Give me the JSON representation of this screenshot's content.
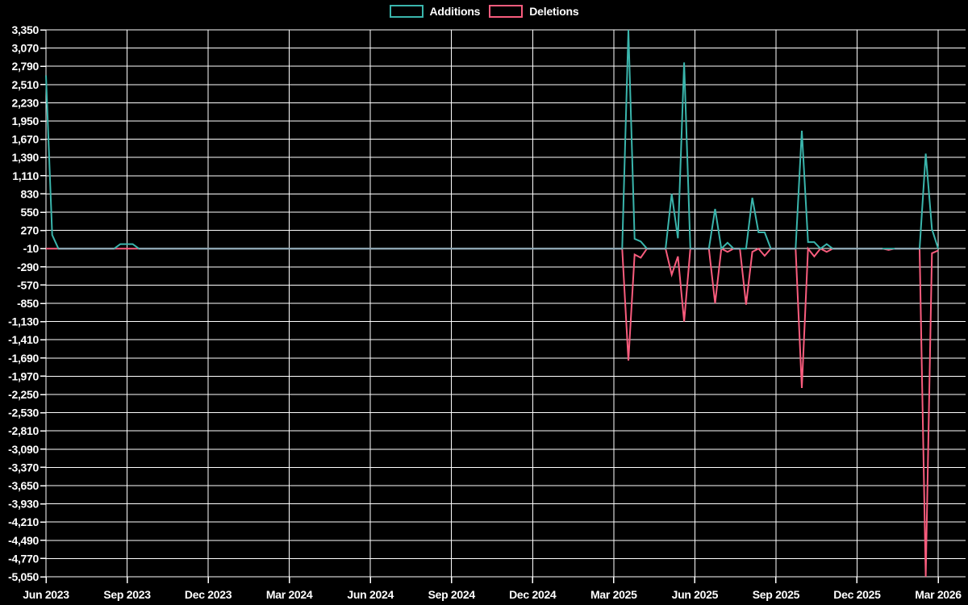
{
  "chart_data": {
    "type": "line",
    "title": "",
    "legend_position": "top-center",
    "grid": true,
    "background_color": "#000000",
    "grid_color": "#ffffff",
    "text_color": "#ffffff",
    "baseline_overlap_color": "#92a9b8",
    "x_axis": {
      "tick_labels": [
        "Jun 2023",
        "Sep 2023",
        "Dec 2023",
        "Mar 2024",
        "Jun 2024",
        "Sep 2024",
        "Dec 2024",
        "Mar 2025",
        "Jun 2025",
        "Sep 2025",
        "Dec 2025",
        "Mar 2026"
      ]
    },
    "y_axis": {
      "max": 3350,
      "min": -5050,
      "step": 280,
      "tick_labels": [
        "3,350",
        "3,070",
        "2,790",
        "2,510",
        "2,230",
        "1,950",
        "1,670",
        "1,390",
        "1,110",
        "830",
        "550",
        "270",
        "-10",
        "-290",
        "-570",
        "-850",
        "-1,130",
        "-1,410",
        "-1,690",
        "-1,970",
        "-2,250",
        "-2,530",
        "-2,810",
        "-3,090",
        "-3,370",
        "-3,650",
        "-3,930",
        "-4,210",
        "-4,490",
        "-4,770",
        "-5,050"
      ]
    },
    "point_interval": "weekly",
    "series": [
      {
        "name": "Additions",
        "color": "#3ab5ac",
        "values": [
          2650,
          200,
          -10,
          -10,
          -10,
          -10,
          -10,
          -10,
          -10,
          -10,
          -10,
          -10,
          60,
          60,
          60,
          -10,
          -10,
          -10,
          -10,
          -10,
          -10,
          -10,
          -10,
          -10,
          -10,
          -10,
          -10,
          -10,
          -10,
          -10,
          -10,
          -10,
          -10,
          -10,
          -10,
          -10,
          -10,
          -10,
          -10,
          -10,
          -10,
          -10,
          -10,
          -10,
          -10,
          -10,
          -10,
          -10,
          -10,
          -10,
          -10,
          -10,
          -10,
          -10,
          -10,
          -10,
          -10,
          -10,
          -10,
          -10,
          -10,
          -10,
          -10,
          -10,
          -10,
          -10,
          -10,
          -10,
          -10,
          -10,
          -10,
          -10,
          -10,
          -10,
          -10,
          -10,
          -10,
          -10,
          -10,
          -10,
          -10,
          -10,
          -10,
          -10,
          -10,
          -10,
          -10,
          -10,
          -10,
          -10,
          -10,
          -10,
          -10,
          -10,
          3350,
          140,
          100,
          -10,
          -10,
          -10,
          -10,
          830,
          150,
          2850,
          -10,
          -10,
          -10,
          -10,
          600,
          -10,
          80,
          -10,
          -10,
          -10,
          770,
          240,
          240,
          -10,
          -10,
          -10,
          -10,
          -10,
          1800,
          90,
          90,
          -10,
          60,
          -10,
          -10,
          -10,
          -10,
          -10,
          -10,
          -10,
          -10,
          -10,
          -10,
          -10,
          -10,
          -10,
          -10,
          -10,
          1450,
          290,
          -10
        ]
      },
      {
        "name": "Deletions",
        "color": "#f95c7d",
        "values": [
          -10,
          -10,
          -10,
          -10,
          -10,
          -10,
          -10,
          -10,
          -10,
          -10,
          -10,
          -10,
          -10,
          -10,
          -10,
          -10,
          -10,
          -10,
          -10,
          -10,
          -10,
          -10,
          -10,
          -10,
          -10,
          -10,
          -10,
          -10,
          -10,
          -10,
          -10,
          -10,
          -10,
          -10,
          -10,
          -10,
          -10,
          -10,
          -10,
          -10,
          -10,
          -10,
          -10,
          -10,
          -10,
          -10,
          -10,
          -10,
          -10,
          -10,
          -10,
          -10,
          -10,
          -10,
          -10,
          -10,
          -10,
          -10,
          -10,
          -10,
          -10,
          -10,
          -10,
          -10,
          -10,
          -10,
          -10,
          -10,
          -10,
          -10,
          -10,
          -10,
          -10,
          -10,
          -10,
          -10,
          -10,
          -10,
          -10,
          -10,
          -10,
          -10,
          -10,
          -10,
          -10,
          -10,
          -10,
          -10,
          -10,
          -10,
          -10,
          -10,
          -10,
          -10,
          -1730,
          -100,
          -150,
          -10,
          -10,
          -10,
          -10,
          -410,
          -130,
          -1130,
          -10,
          -10,
          -10,
          -10,
          -850,
          -10,
          -60,
          -10,
          -10,
          -870,
          -60,
          -10,
          -120,
          -10,
          -10,
          -10,
          -10,
          -10,
          -2150,
          -10,
          -130,
          -10,
          -60,
          -10,
          -10,
          -10,
          -10,
          -10,
          -10,
          -10,
          -10,
          -10,
          -30,
          -10,
          -10,
          -10,
          -10,
          -10,
          -5050,
          -80,
          -40
        ]
      }
    ]
  }
}
